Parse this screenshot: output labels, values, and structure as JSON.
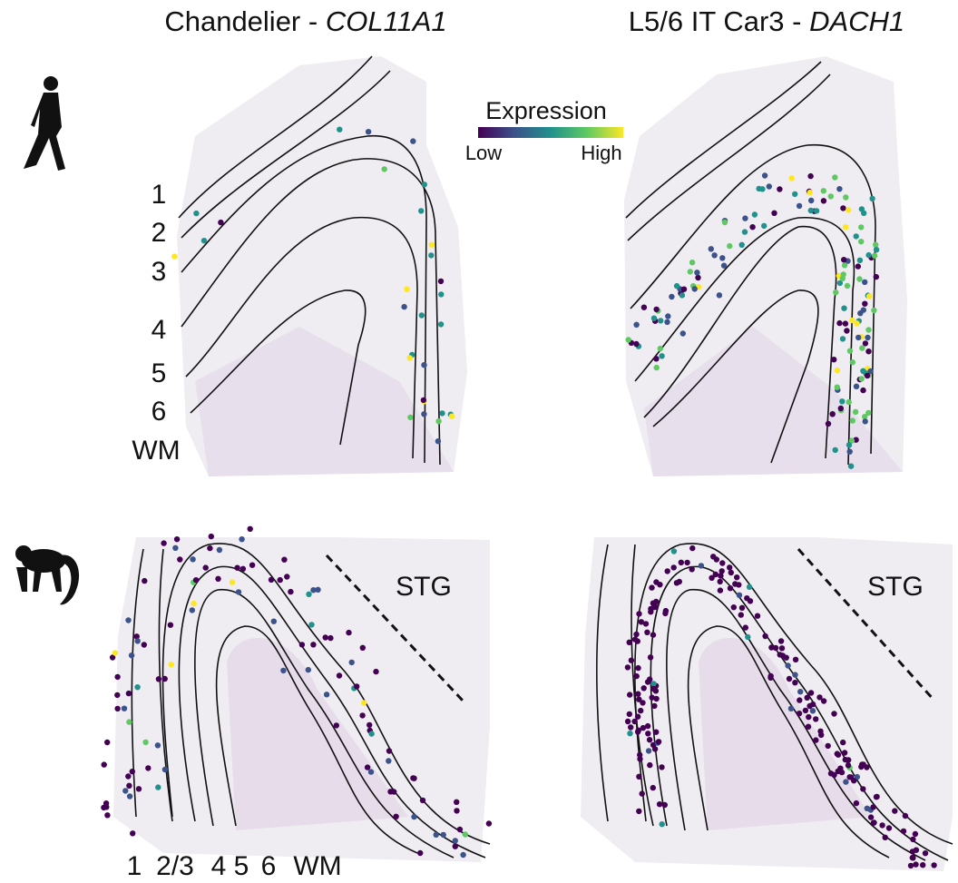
{
  "panels": [
    {
      "title_prefix": "Chandelier - ",
      "title_gene": "COL11A1"
    },
    {
      "title_prefix": "L5/6 IT Car3 - ",
      "title_gene": "DACH1"
    }
  ],
  "colorbar": {
    "title": "Expression",
    "low": "Low",
    "high": "High"
  },
  "human_layers": [
    "1",
    "2",
    "3",
    "4",
    "5",
    "6",
    "WM"
  ],
  "macaque_layers": [
    "1",
    "2/3",
    "4",
    "5",
    "6",
    "WM"
  ],
  "region_labels": [
    "STG",
    "STG"
  ]
}
